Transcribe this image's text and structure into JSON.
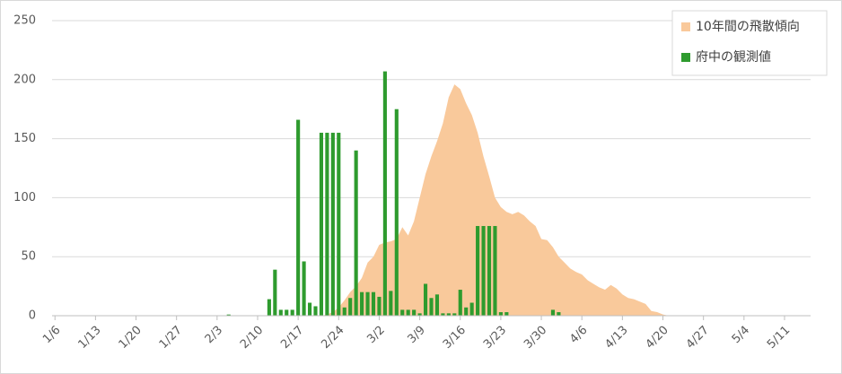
{
  "chart_data": {
    "type": "bar",
    "categories": [
      "1/6",
      null,
      null,
      null,
      null,
      null,
      null,
      "1/13",
      null,
      null,
      null,
      null,
      null,
      null,
      "1/20",
      null,
      null,
      null,
      null,
      null,
      null,
      "1/27",
      null,
      null,
      null,
      null,
      null,
      null,
      "2/3",
      null,
      null,
      null,
      null,
      null,
      null,
      "2/10",
      null,
      null,
      null,
      null,
      null,
      null,
      "2/17",
      null,
      null,
      null,
      null,
      null,
      null,
      "2/24",
      null,
      null,
      null,
      null,
      null,
      null,
      "3/2",
      null,
      null,
      null,
      null,
      null,
      null,
      "3/9",
      null,
      null,
      null,
      null,
      null,
      null,
      "3/16",
      null,
      null,
      null,
      null,
      null,
      null,
      "3/23",
      null,
      null,
      null,
      null,
      null,
      null,
      "3/30",
      null,
      null,
      null,
      null,
      null,
      null,
      "4/6",
      null,
      null,
      null,
      null,
      null,
      null,
      "4/13",
      null,
      null,
      null,
      null,
      null,
      null,
      "4/20",
      null,
      null,
      null,
      null,
      null,
      null,
      "4/27",
      null,
      null,
      null,
      null,
      null,
      null,
      "5/4",
      null,
      null,
      null,
      null,
      null,
      null,
      "5/11",
      null,
      null,
      null,
      null
    ],
    "series": [
      {
        "name": "10年間の飛散傾向",
        "type": "area",
        "color": "#f9c99b",
        "values": [
          null,
          null,
          null,
          null,
          null,
          null,
          null,
          null,
          null,
          null,
          null,
          null,
          null,
          null,
          null,
          null,
          null,
          null,
          null,
          null,
          null,
          null,
          null,
          null,
          null,
          null,
          null,
          null,
          null,
          null,
          null,
          null,
          null,
          null,
          null,
          null,
          null,
          null,
          null,
          null,
          null,
          null,
          null,
          null,
          null,
          null,
          0,
          1,
          3,
          7,
          13,
          20,
          25,
          32,
          45,
          50,
          60,
          62,
          63,
          65,
          75,
          68,
          80,
          100,
          120,
          135,
          148,
          163,
          185,
          196,
          192,
          180,
          170,
          155,
          135,
          118,
          100,
          92,
          88,
          86,
          88,
          85,
          80,
          76,
          65,
          64,
          58,
          50,
          45,
          40,
          37,
          35,
          30,
          27,
          24,
          22,
          26,
          23,
          18,
          15,
          14,
          12,
          10,
          4,
          3,
          1,
          0,
          null,
          null,
          null,
          null,
          null,
          null,
          null,
          null,
          null,
          null,
          null,
          null,
          null,
          null,
          null,
          null,
          null,
          null,
          null,
          null,
          null,
          null,
          null,
          null
        ]
      },
      {
        "name": "府中の観測値",
        "type": "bar",
        "color": "#2e9b2e",
        "values": [
          0,
          0,
          0,
          0,
          0,
          0,
          0,
          0,
          0,
          0,
          0,
          0,
          0,
          0,
          0,
          0,
          0,
          0,
          0,
          0,
          0,
          0,
          0,
          0,
          0,
          0,
          0,
          0,
          0,
          0,
          1,
          0,
          0,
          0,
          0,
          0,
          0,
          14,
          39,
          5,
          5,
          5,
          166,
          46,
          11,
          8,
          155,
          155,
          155,
          155,
          7,
          15,
          140,
          20,
          20,
          20,
          16,
          207,
          21,
          175,
          5,
          5,
          5,
          2,
          27,
          15,
          18,
          2,
          2,
          2,
          22,
          7,
          11,
          76,
          76,
          76,
          76,
          3,
          3,
          0,
          0,
          0,
          0,
          0,
          0,
          0,
          5,
          3,
          0,
          0,
          0,
          0,
          0,
          0,
          0,
          0,
          0,
          0,
          0,
          0,
          0,
          0,
          0,
          0,
          0,
          0,
          0,
          0,
          0,
          0,
          0,
          0,
          0,
          0,
          0,
          0,
          0,
          0,
          0,
          0,
          0,
          0,
          0,
          0,
          0,
          0,
          0,
          0,
          0,
          0,
          0
        ]
      }
    ],
    "ylim": [
      0,
      250
    ],
    "yticks": [
      0,
      50,
      100,
      150,
      200,
      250
    ],
    "grid": true,
    "legend": "upper-right"
  }
}
